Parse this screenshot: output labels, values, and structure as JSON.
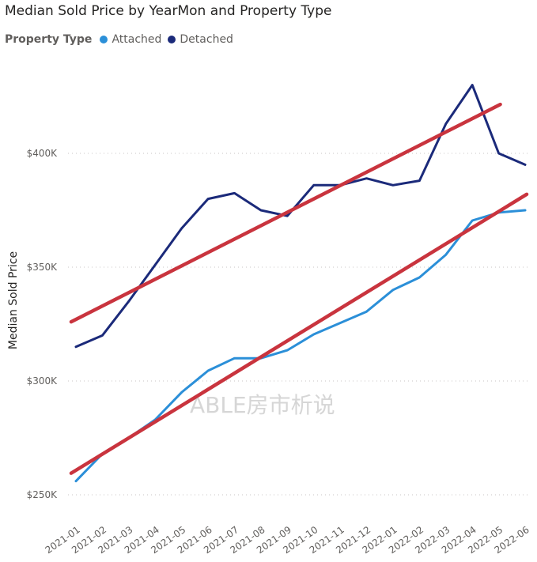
{
  "title": "Median Sold Price by YearMon and Property Type",
  "legend": {
    "title": "Property Type",
    "items": [
      {
        "label": "Attached",
        "color": "#2b8fd8"
      },
      {
        "label": "Detached",
        "color": "#1b2a7a"
      }
    ]
  },
  "watermark": "ABLE房市析说",
  "chart_data": {
    "type": "line",
    "title": "Median Sold Price by YearMon and Property Type",
    "xlabel": "",
    "ylabel": "Median Sold Price",
    "ylim": [
      240000,
      430000
    ],
    "yticks": [
      250000,
      300000,
      350000,
      400000
    ],
    "ytick_labels": [
      "$250K",
      "$300K",
      "$350K",
      "$400K"
    ],
    "grid": true,
    "legend_position": "top-left",
    "categories": [
      "2021-01",
      "2021-02",
      "2021-03",
      "2021-04",
      "2021-05",
      "2021-06",
      "2021-07",
      "2021-08",
      "2021-09",
      "2021-10",
      "2021-11",
      "2021-12",
      "2022-01",
      "2022-02",
      "2022-03",
      "2022-04",
      "2022-05",
      "2022-06"
    ],
    "series": [
      {
        "name": "Attached",
        "color": "#2b8fd8",
        "values": [
          256000,
          268000,
          275000,
          283000,
          295000,
          304500,
          310000,
          310000,
          313500,
          320500,
          325500,
          330500,
          340000,
          345500,
          355500,
          370500,
          374000,
          375000
        ]
      },
      {
        "name": "Detached",
        "color": "#1b2a7a",
        "values": [
          315000,
          320000,
          335000,
          351000,
          367000,
          380000,
          382500,
          375000,
          372500,
          386000,
          386000,
          389000,
          386000,
          388000,
          413000,
          430000,
          400000,
          395000
        ]
      }
    ],
    "trendlines": [
      {
        "series": "Detached",
        "color": "#c9343e",
        "start": 326000,
        "end": 421500,
        "end_category": "2022-05"
      },
      {
        "series": "Attached",
        "color": "#c9343e",
        "start": 259500,
        "end": 382000,
        "end_category": "2022-06"
      }
    ]
  }
}
